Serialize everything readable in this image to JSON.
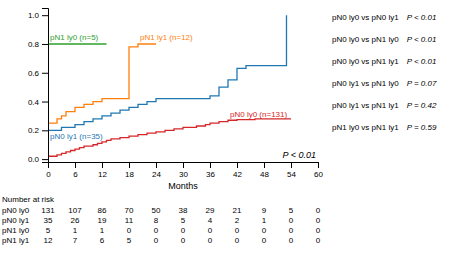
{
  "chart_data": {
    "type": "step",
    "xlabel": "Months",
    "xlim": [
      0,
      60
    ],
    "ylim": [
      -0.02,
      1.05
    ],
    "xticks": [
      0,
      6,
      12,
      18,
      24,
      30,
      36,
      42,
      48,
      54,
      60
    ],
    "yticks": [
      {
        "value": 0.0,
        "label": "0.0"
      },
      0.2,
      0.4,
      0.6,
      0.8,
      {
        "value": 1.0,
        "label": "1.0"
      }
    ],
    "annotation": "P < 0.01",
    "series": [
      {
        "name": "pN0 ly0 (n=131)",
        "color": "#d62728",
        "x": [
          0,
          1,
          2,
          3,
          4,
          5,
          6,
          7,
          8,
          9,
          10,
          11,
          12,
          13,
          14,
          15,
          16,
          17,
          18,
          19,
          20,
          21,
          22,
          23,
          24,
          25,
          26,
          27,
          28,
          29,
          30,
          31,
          32,
          33,
          34,
          35,
          36,
          37,
          38,
          39,
          40,
          41,
          42,
          43,
          44,
          45,
          46,
          47,
          48,
          49,
          50,
          51,
          52,
          53,
          54
        ],
        "values": [
          0.02,
          0.02,
          0.03,
          0.04,
          0.05,
          0.06,
          0.07,
          0.08,
          0.09,
          0.09,
          0.1,
          0.11,
          0.12,
          0.13,
          0.14,
          0.14,
          0.15,
          0.15,
          0.16,
          0.16,
          0.17,
          0.17,
          0.18,
          0.18,
          0.19,
          0.19,
          0.2,
          0.2,
          0.21,
          0.21,
          0.22,
          0.22,
          0.22,
          0.23,
          0.23,
          0.24,
          0.25,
          0.25,
          0.26,
          0.26,
          0.27,
          0.27,
          0.275,
          0.275,
          0.275,
          0.275,
          0.28,
          0.28,
          0.28,
          0.28,
          0.28,
          0.28,
          0.28,
          0.28,
          0.28
        ]
      },
      {
        "name": "pN0 ly1 (n=35)",
        "color": "#1f77b4",
        "x": [
          0,
          1,
          2,
          3,
          4,
          5,
          6,
          7,
          8,
          9,
          10,
          11,
          12,
          13,
          14,
          15,
          16,
          17,
          18,
          19,
          20,
          21,
          22,
          23,
          24,
          25,
          26,
          27,
          28,
          29,
          30,
          31,
          32,
          33,
          34,
          35,
          36,
          37,
          38,
          39,
          40,
          41,
          42,
          43,
          44,
          45,
          46,
          47,
          48,
          49,
          50,
          51,
          52,
          53
        ],
        "values": [
          0.2,
          0.2,
          0.2,
          0.22,
          0.22,
          0.22,
          0.24,
          0.24,
          0.26,
          0.26,
          0.28,
          0.28,
          0.3,
          0.3,
          0.32,
          0.32,
          0.34,
          0.34,
          0.36,
          0.36,
          0.38,
          0.38,
          0.4,
          0.4,
          0.42,
          0.42,
          0.42,
          0.42,
          0.42,
          0.42,
          0.42,
          0.42,
          0.42,
          0.42,
          0.42,
          0.42,
          0.44,
          0.44,
          0.5,
          0.5,
          0.55,
          0.55,
          0.63,
          0.63,
          0.65,
          0.65,
          0.65,
          0.65,
          0.65,
          0.65,
          0.65,
          0.65,
          0.65,
          1.0
        ]
      },
      {
        "name": "pN1 ly0 (n=5)",
        "color": "#2ca02c",
        "x": [
          0,
          1,
          2,
          3,
          4,
          5,
          6,
          7,
          8,
          9,
          10,
          11,
          12,
          13
        ],
        "values": [
          0.8,
          0.8,
          0.8,
          0.8,
          0.8,
          0.8,
          0.8,
          0.8,
          0.8,
          0.8,
          0.8,
          0.8,
          0.8,
          0.8
        ]
      },
      {
        "name": "pN1 ly1 (n=12)",
        "color": "#ff7f0e",
        "x": [
          0,
          1,
          2,
          3,
          4,
          5,
          6,
          7,
          8,
          9,
          10,
          11,
          12,
          13,
          14,
          15,
          16,
          17,
          18,
          19,
          20,
          21,
          22,
          23,
          24
        ],
        "values": [
          0.25,
          0.25,
          0.28,
          0.3,
          0.33,
          0.33,
          0.36,
          0.36,
          0.38,
          0.38,
          0.4,
          0.4,
          0.42,
          0.42,
          0.42,
          0.42,
          0.42,
          0.42,
          0.78,
          0.78,
          0.8,
          0.8,
          0.8,
          0.8,
          0.8
        ]
      }
    ],
    "comparisons": [
      {
        "pair": "pN0 ly0 vs pN0 ly1",
        "p_value": "P < 0.01"
      },
      {
        "pair": "pN0 ly0 vs pN1 ly0",
        "p_value": "P < 0.01"
      },
      {
        "pair": "pN0 ly0 vs pN1 ly1",
        "p_value": "P < 0.01"
      },
      {
        "pair": "pN0 ly1 vs pN1 ly0",
        "p_value": "P = 0.07"
      },
      {
        "pair": "pN0 ly1 vs pN1 ly1",
        "p_value": "P = 0.42"
      },
      {
        "pair": "pN1 ly0 vs pN1 ly1",
        "p_value": "P = 0.59"
      }
    ],
    "risk_table": {
      "header": "Number at risk",
      "time_points": [
        0,
        6,
        12,
        18,
        24,
        30,
        36,
        42,
        48,
        54,
        60
      ],
      "rows": [
        {
          "label": "pN0 ly0",
          "values": [
            131,
            107,
            86,
            70,
            50,
            38,
            29,
            21,
            9,
            5,
            0
          ]
        },
        {
          "label": "pN0 ly1",
          "values": [
            35,
            26,
            19,
            11,
            8,
            5,
            4,
            2,
            1,
            0,
            0
          ]
        },
        {
          "label": "pN1 ly0",
          "values": [
            5,
            1,
            1,
            0,
            0,
            0,
            0,
            0,
            0,
            0,
            0
          ]
        },
        {
          "label": "pN1 ly1",
          "values": [
            12,
            7,
            6,
            5,
            0,
            0,
            0,
            0,
            0,
            0,
            0
          ]
        }
      ]
    }
  }
}
